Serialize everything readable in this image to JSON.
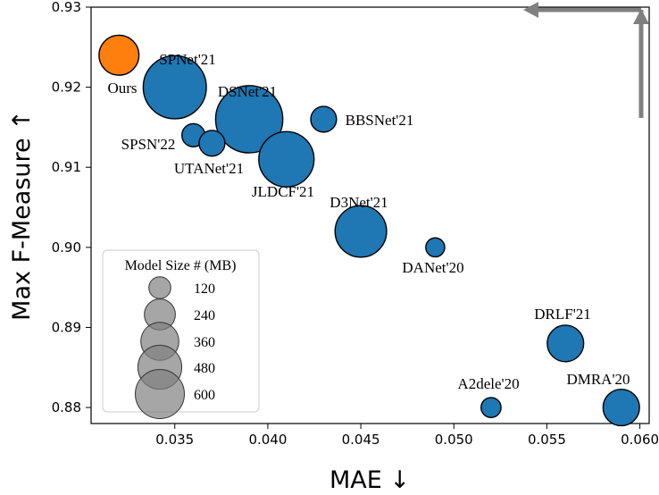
{
  "chart_data": {
    "type": "scatter",
    "xlabel": "MAE ↓",
    "ylabel": "Max F-Measure ↑",
    "xlim": [
      0.0305,
      0.0605
    ],
    "ylim": [
      0.878,
      0.93
    ],
    "xticks": [
      0.035,
      0.04,
      0.045,
      0.05,
      0.055,
      0.06
    ],
    "xtick_labels": [
      "0.035",
      "0.040",
      "0.045",
      "0.050",
      "0.055",
      "0.060"
    ],
    "yticks": [
      0.88,
      0.89,
      0.9,
      0.91,
      0.92,
      0.93
    ],
    "ytick_labels": [
      "0.88",
      "0.89",
      "0.90",
      "0.91",
      "0.92",
      "0.93"
    ],
    "colors": {
      "default": "#1f77b4",
      "highlight": "#ff7f0e",
      "highlight_label": "#d62728",
      "arrow": "#808080"
    },
    "points": [
      {
        "label": "Ours",
        "x": 0.032,
        "y": 0.924,
        "size_mb": 120,
        "highlight": true
      },
      {
        "label": "SPNet'21",
        "x": 0.035,
        "y": 0.92,
        "size_mb": 300
      },
      {
        "label": "DSNet'21",
        "x": 0.039,
        "y": 0.916,
        "size_mb": 340
      },
      {
        "label": "BBSNet'21",
        "x": 0.043,
        "y": 0.916,
        "size_mb": 50
      },
      {
        "label": "SPSN'22",
        "x": 0.036,
        "y": 0.914,
        "size_mb": 40
      },
      {
        "label": "UTANet'21",
        "x": 0.037,
        "y": 0.913,
        "size_mb": 50
      },
      {
        "label": "JLDCF'21",
        "x": 0.041,
        "y": 0.911,
        "size_mb": 230
      },
      {
        "label": "D3Net'21",
        "x": 0.045,
        "y": 0.902,
        "size_mb": 200
      },
      {
        "label": "DANet'20",
        "x": 0.049,
        "y": 0.9,
        "size_mb": 27
      },
      {
        "label": "DRLF'21",
        "x": 0.056,
        "y": 0.888,
        "size_mb": 100
      },
      {
        "label": "A2dele'20",
        "x": 0.052,
        "y": 0.88,
        "size_mb": 30
      },
      {
        "label": "DMRA'20",
        "x": 0.059,
        "y": 0.88,
        "size_mb": 100
      }
    ],
    "legend": {
      "title": "Model Size # (MB)",
      "position": "lower-left",
      "entries": [
        {
          "label": "120",
          "size_mb": 120
        },
        {
          "label": "240",
          "size_mb": 240
        },
        {
          "label": "360",
          "size_mb": 360
        },
        {
          "label": "480",
          "size_mb": 480
        },
        {
          "label": "600",
          "size_mb": 600
        }
      ]
    }
  }
}
